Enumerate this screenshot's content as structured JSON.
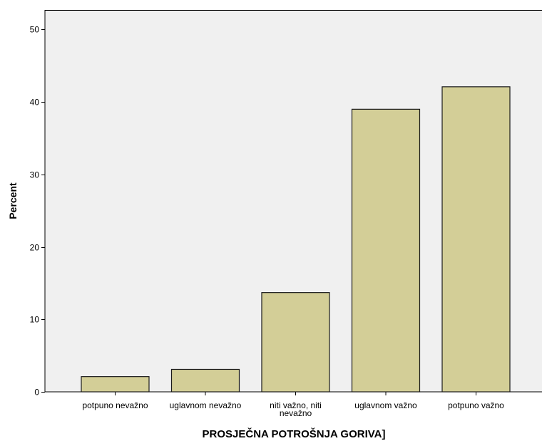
{
  "chart_data": {
    "type": "bar",
    "title": "",
    "xlabel": "PROSJEČNA POTROŠNJA GORIVA]",
    "ylabel": "Percent",
    "categories": [
      "potpuno nevažno",
      "uglavnom nevažno",
      "niti važno, niti nevažno",
      "uglavnom važno",
      "potpuno važno"
    ],
    "category_lines": [
      [
        "potpuno nevažno"
      ],
      [
        "uglavnom nevažno"
      ],
      [
        "niti važno, niti",
        "nevažno"
      ],
      [
        "uglavnom važno"
      ],
      [
        "potpuno važno"
      ]
    ],
    "values": [
      2.1,
      3.1,
      13.7,
      39.0,
      42.1
    ],
    "yticks": [
      0,
      10,
      20,
      30,
      40,
      50
    ],
    "ylim": [
      0,
      52.7
    ],
    "grid": false,
    "legend": "none",
    "colors": {
      "bar_fill": "#d3ce97",
      "bar_stroke": "#1a1a1a",
      "plot_background": "#f0f0f0",
      "axis": "#000000"
    }
  }
}
